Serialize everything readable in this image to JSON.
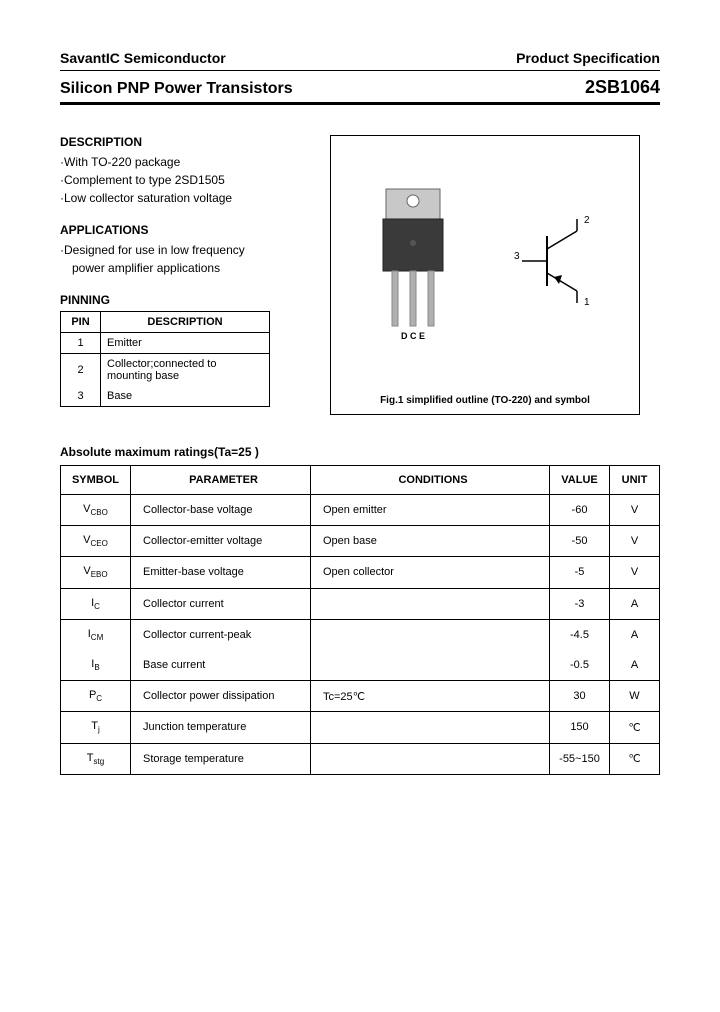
{
  "header": {
    "company": "SavantIC Semiconductor",
    "spec_label": "Product Specification",
    "title": "Silicon PNP Power Transistors",
    "part_number": "2SB1064"
  },
  "description": {
    "heading": "DESCRIPTION",
    "items": [
      "·With TO-220 package",
      "·Complement to type 2SD1505",
      "·Low collector saturation voltage"
    ]
  },
  "applications": {
    "heading": "APPLICATIONS",
    "line1": "·Designed for use in low frequency",
    "line2": "power amplifier applications"
  },
  "pinning": {
    "heading": "PINNING",
    "columns": [
      "PIN",
      "DESCRIPTION"
    ],
    "rows": [
      {
        "pin": "1",
        "desc": "Emitter"
      },
      {
        "pin": "2",
        "desc": "Collector;connected to mounting base"
      },
      {
        "pin": "3",
        "desc": "Base"
      }
    ]
  },
  "figure": {
    "pin_labels": "D   C   E",
    "sym_labels": {
      "p1": "1",
      "p2": "2",
      "p3": "3"
    },
    "caption": "Fig.1 simplified outline (TO-220) and symbol"
  },
  "ratings": {
    "heading": "Absolute maximum ratings(Ta=25  )",
    "columns": [
      "SYMBOL",
      "PARAMETER",
      "CONDITIONS",
      "VALUE",
      "UNIT"
    ],
    "rows": [
      {
        "sym_main": "V",
        "sym_sub": "CBO",
        "par": "Collector-base voltage",
        "con": "Open emitter",
        "val": "-60",
        "uni": "V"
      },
      {
        "sym_main": "V",
        "sym_sub": "CEO",
        "par": "Collector-emitter voltage",
        "con": "Open base",
        "val": "-50",
        "uni": "V"
      },
      {
        "sym_main": "V",
        "sym_sub": "EBO",
        "par": "Emitter-base voltage",
        "con": "Open collector",
        "val": "-5",
        "uni": "V"
      },
      {
        "sym_main": "I",
        "sym_sub": "C",
        "par": "Collector current",
        "con": "",
        "val": "-3",
        "uni": "A"
      },
      {
        "sym_main": "I",
        "sym_sub": "CM",
        "par": "Collector current-peak",
        "con": "",
        "val": "-4.5",
        "uni": "A"
      },
      {
        "sym_main": "I",
        "sym_sub": "B",
        "par": "Base current",
        "con": "",
        "val": "-0.5",
        "uni": "A"
      },
      {
        "sym_main": "P",
        "sym_sub": "C",
        "par": "Collector power dissipation",
        "con": "Tc=25℃",
        "val": "30",
        "uni": "W"
      },
      {
        "sym_main": "T",
        "sym_sub": "j",
        "par": "Junction temperature",
        "con": "",
        "val": "150",
        "uni": "℃"
      },
      {
        "sym_main": "T",
        "sym_sub": "stg",
        "par": "Storage temperature",
        "con": "",
        "val": "-55~150",
        "uni": "℃"
      }
    ]
  },
  "colors": {
    "text": "#000000",
    "bg": "#ffffff",
    "package_body": "#3a3a3a",
    "package_tab": "#c8c8c8",
    "leads": "#b0b0b0"
  }
}
